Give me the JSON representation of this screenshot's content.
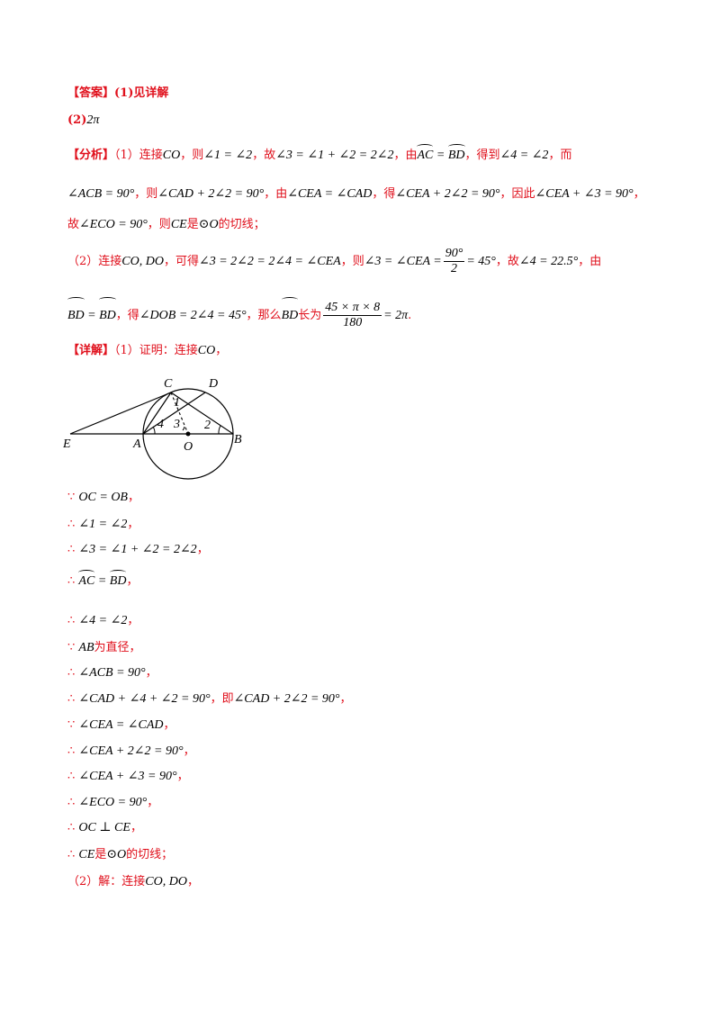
{
  "answer": {
    "tag": "【答案】",
    "part1": "(1)见详解",
    "part2_label": "(2)",
    "part2_value": "2π"
  },
  "analysis": {
    "tag": "【分析】",
    "l1_a": "（1）连接",
    "l1_b": "CO",
    "l1_c": "，则",
    "l1_d": "∠1 = ∠2",
    "l1_e": "，故",
    "l1_f": "∠3 = ∠1 + ∠2 = 2∠2",
    "l1_g": "，由",
    "l1_h1": "AC",
    "l1_h2": " = ",
    "l1_h3": "BD",
    "l1_i": "，得到",
    "l1_j": "∠4 = ∠2",
    "l1_k": "，而",
    "l2_a": "∠ACB = 90°",
    "l2_b": "，则",
    "l2_c": "∠CAD + 2∠2 = 90°",
    "l2_d": "，由",
    "l2_e": "∠CEA = ∠CAD",
    "l2_f": "，得",
    "l2_g": "∠CEA + 2∠2 = 90°",
    "l2_h": "，因此",
    "l2_i": "∠CEA + ∠3 = 90°",
    "l2_j": "，",
    "l3_a": "故",
    "l3_b": "∠ECO = 90°",
    "l3_c": "，则",
    "l3_d": "CE",
    "l3_e": "是",
    "l3_f": "⊙O",
    "l3_g": "的切线；",
    "l4_a": "（2）连接",
    "l4_b": "CO, DO",
    "l4_c": "，可得",
    "l4_d": "∠3 = 2∠2 = 2∠4 = ∠CEA",
    "l4_e": "，则",
    "l4_f": "∠3 = ∠CEA =",
    "l4_frac_num": "90°",
    "l4_frac_den": "2",
    "l4_g": "= 45°",
    "l4_h": "，故",
    "l4_i": "∠4 = 22.5°",
    "l4_j": "，由",
    "l5_a1": "BD",
    "l5_a2": " = ",
    "l5_a3": "BD",
    "l5_b": "，得",
    "l5_c": "∠DOB = 2∠4 = 45°",
    "l5_d": "，那么",
    "l5_e": "BD",
    "l5_f": "长为",
    "l5_frac_num": "45 × π × 8",
    "l5_frac_den": "180",
    "l5_g": "= 2π",
    "l5_h": "."
  },
  "detail": {
    "tag": "【详解】",
    "intro_a": "（1）证明：连接",
    "intro_b": "CO",
    "intro_c": "，",
    "steps": [
      {
        "sym": "∵",
        "math": "OC = OB",
        "tail": "，"
      },
      {
        "sym": "∴",
        "math": "∠1 = ∠2",
        "tail": "，"
      },
      {
        "sym": "∴",
        "math": "∠3 = ∠1 + ∠2 = 2∠2",
        "tail": "，"
      },
      {
        "sym": "∴",
        "arc1": "AC",
        "eq": " = ",
        "arc2": "BD",
        "tail": "，"
      },
      {
        "sym": "∴",
        "math": "∠4 = ∠2",
        "tail": "，"
      },
      {
        "sym": "∵",
        "math": "AB",
        "text": "为直径，"
      },
      {
        "sym": "∴",
        "math": "∠ACB = 90°",
        "tail": "，"
      },
      {
        "sym": "∴",
        "math": "∠CAD + ∠4 + ∠2 = 90°",
        "tail": "，即",
        "math2": "∠CAD + 2∠2 = 90°",
        "tail2": "，"
      },
      {
        "sym": "∵",
        "math": "∠CEA = ∠CAD",
        "tail": "，"
      },
      {
        "sym": "∴",
        "math": "∠CEA + 2∠2 = 90°",
        "tail": "，"
      },
      {
        "sym": "∴",
        "math": "∠CEA + ∠3 = 90°",
        "tail": "，"
      },
      {
        "sym": "∴",
        "math": "∠ECO = 90°",
        "tail": "，"
      },
      {
        "sym": "∴",
        "math": "OC ⊥ CE",
        "tail": "，"
      },
      {
        "sym": "∴",
        "math": "CE",
        "text": "是",
        "math2": "⊙O",
        "tail2": "的切线；"
      }
    ],
    "part2_a": "（2）解：连接",
    "part2_b": "CO, DO",
    "part2_c": "，"
  },
  "figure": {
    "labels": {
      "E": "E",
      "A": "A",
      "O": "O",
      "B": "B",
      "C": "C",
      "D": "D",
      "n1": "1",
      "n2": "2",
      "n3": "3",
      "n4": "4"
    }
  }
}
